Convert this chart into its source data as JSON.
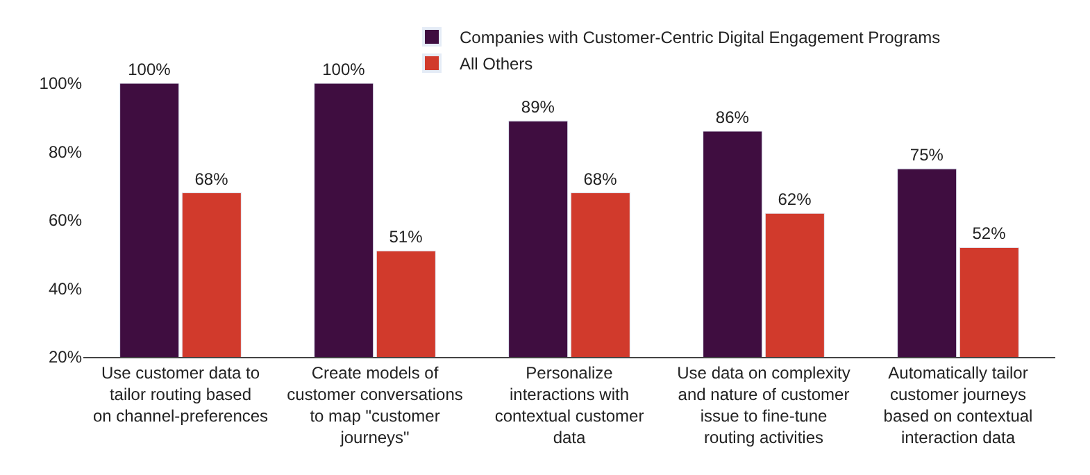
{
  "chart_data": {
    "type": "bar",
    "categories": [
      "Use customer data to tailor routing based on channel-preferences",
      "Create models of customer conversations to map \"customer journeys\"",
      "Personalize interactions with contextual customer data",
      "Use data on complexity and nature of customer issue to fine-tune routing activities",
      "Automatically tailor customer journeys based on contextual interaction data"
    ],
    "series": [
      {
        "name": "Companies with Customer-Centric Digital Engagement Programs",
        "color": "#3f0d40",
        "values": [
          100,
          100,
          89,
          86,
          75
        ],
        "value_labels": [
          "100%",
          "100%",
          "89%",
          "86%",
          "75%"
        ]
      },
      {
        "name": "All Others",
        "color": "#d13a2c",
        "values": [
          68,
          51,
          68,
          62,
          52
        ],
        "value_labels": [
          "68%",
          "51%",
          "68%",
          "62%",
          "52%"
        ]
      }
    ],
    "ylim": [
      20,
      100
    ],
    "yticks": [
      {
        "value": 20,
        "label": "20%"
      },
      {
        "value": 40,
        "label": "40%"
      },
      {
        "value": 60,
        "label": "60%"
      },
      {
        "value": 80,
        "label": "80%"
      },
      {
        "value": 100,
        "label": "100%"
      }
    ],
    "legend": "top"
  }
}
